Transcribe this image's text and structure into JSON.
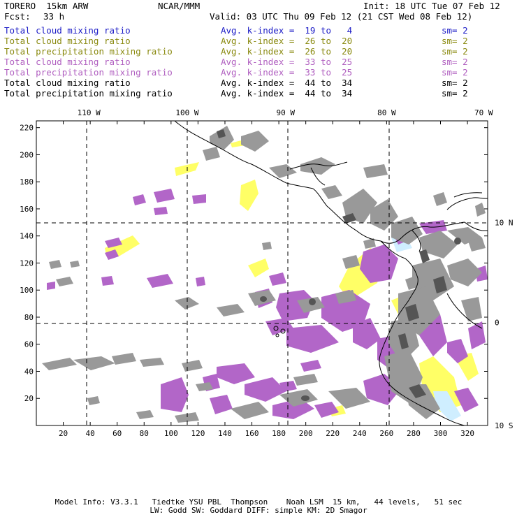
{
  "header": {
    "model": "TORERO  15km ARW",
    "center": "NCAR/MMM",
    "init": "Init: 18 UTC Tue 07 Feb 12",
    "fcst_label": "Fcst:",
    "fcst_value": "33 h",
    "valid": "Valid: 03 UTC Thu 09 Feb 12 (21 CST Wed 08 Feb 12)"
  },
  "legend": [
    {
      "field": "Total cloud mixing ratio",
      "kindex": "Avg. k-index =  19 to   4",
      "sm": "sm= 2",
      "color": "#1c1cc6"
    },
    {
      "field": "Total cloud mixing ratio",
      "kindex": "Avg. k-index =  26 to  20",
      "sm": "sm= 2",
      "color": "#8a8a10"
    },
    {
      "field": "Total precipitation mixing ratio",
      "kindex": "Avg. k-index =  26 to  20",
      "sm": "sm= 2",
      "color": "#8a8a10"
    },
    {
      "field": "Total cloud mixing ratio",
      "kindex": "Avg. k-index =  33 to  25",
      "sm": "sm= 2",
      "color": "#b05fc0"
    },
    {
      "field": "Total precipitation mixing ratio",
      "kindex": "Avg. k-index =  33 to  25",
      "sm": "sm= 2",
      "color": "#b05fc0"
    },
    {
      "field": "Total cloud mixing ratio",
      "kindex": "Avg. k-index =  44 to  34",
      "sm": "sm= 2",
      "color": "#000000"
    },
    {
      "field": "Total precipitation mixing ratio",
      "kindex": "Avg. k-index =  44 to  34",
      "sm": "sm= 2",
      "color": "#000000"
    }
  ],
  "chart_data": {
    "type": "heatmap",
    "x_grid_ticks": [
      20,
      40,
      60,
      80,
      100,
      120,
      140,
      160,
      180,
      200,
      220,
      240,
      260,
      280,
      300,
      320
    ],
    "y_grid_ticks": [
      20,
      40,
      60,
      80,
      100,
      120,
      140,
      160,
      180,
      200,
      220
    ],
    "xlim": [
      0,
      335
    ],
    "ylim": [
      0,
      225
    ],
    "longitude_labels": [
      {
        "label": "110 W",
        "grid_x": 39
      },
      {
        "label": "100 W",
        "grid_x": 112
      },
      {
        "label": "90 W",
        "grid_x": 185
      },
      {
        "label": "80 W",
        "grid_x": 260
      },
      {
        "label": "70 W",
        "grid_x": 332
      }
    ],
    "latitude_labels": [
      {
        "label": "10 N",
        "grid_y": 150
      },
      {
        "label": "0",
        "grid_y": 76
      },
      {
        "label": "10 S",
        "grid_y": 0
      }
    ],
    "field_colors": {
      "gray": "#999999",
      "dark_gray": "#555555",
      "purple": "#b266c8",
      "yellow": "#ffff66",
      "light_blue": "#cfeeff"
    },
    "grid_lines": true
  },
  "footer": {
    "line1": "Model Info: V3.3.1   Tiedtke YSU PBL  Thompson    Noah LSM  15 km,   44 levels,   51 sec",
    "line2": "LW: Godd SW: Goddard DIFF: simple KM: 2D Smagor"
  }
}
